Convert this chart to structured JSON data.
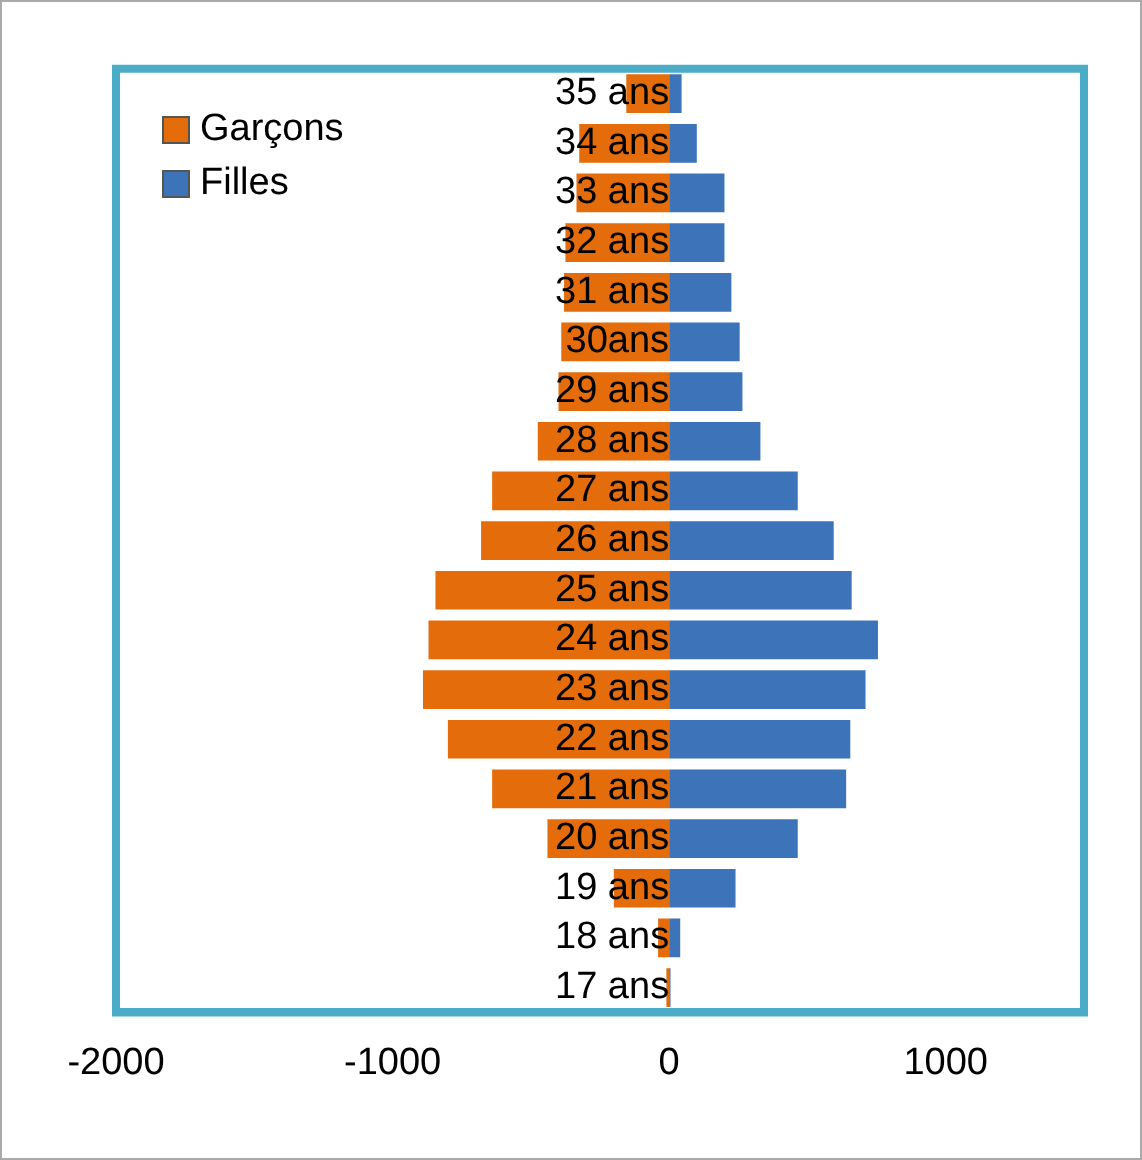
{
  "chart_data": {
    "type": "bar",
    "orientation": "horizontal",
    "stacked": true,
    "categories": [
      "35 ans",
      "34 ans",
      "33 ans",
      "32 ans",
      "31 ans",
      "30ans",
      "29 ans",
      "28 ans",
      "27 ans",
      "26 ans",
      "25 ans",
      "24 ans",
      "23 ans",
      "22 ans",
      "21 ans",
      "20 ans",
      "19 ans",
      "18 ans",
      "17 ans"
    ],
    "series": [
      {
        "name": "Garçons",
        "color": "#e46c0a",
        "values": [
          -155,
          -325,
          -335,
          -375,
          -380,
          -390,
          -400,
          -475,
          -640,
          -680,
          -845,
          -870,
          -890,
          -800,
          -640,
          -440,
          -200,
          -40,
          -10
        ]
      },
      {
        "name": "Filles",
        "color": "#3d73b9",
        "values": [
          45,
          100,
          200,
          200,
          225,
          255,
          265,
          330,
          465,
          595,
          660,
          755,
          710,
          655,
          640,
          465,
          240,
          40,
          5
        ]
      }
    ],
    "xlim": [
      -2000,
      1500
    ],
    "xticks": [
      -2000,
      -1000,
      0,
      1000
    ],
    "grid": false,
    "legend": "top left"
  }
}
